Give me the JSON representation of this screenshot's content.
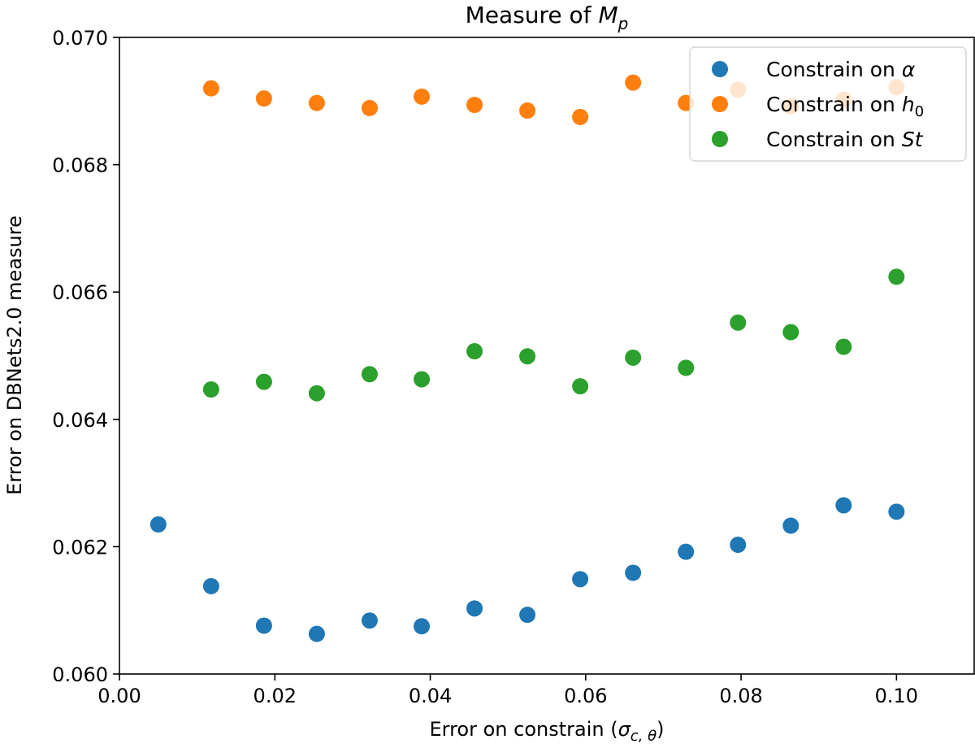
{
  "chart_data": {
    "type": "scatter",
    "title_prefix": "Measure of ",
    "title_var": "M",
    "title_sub": "p",
    "xlabel_prefix": "Error on constrain (",
    "xlabel_var": "σ",
    "xlabel_sub": "c, θ",
    "xlabel_suffix": ")",
    "ylabel": "Error on DBNets2.0 measure",
    "xlim": [
      0.0,
      0.11
    ],
    "ylim": [
      0.06,
      0.07
    ],
    "xticks": [
      0.0,
      0.02,
      0.04,
      0.06,
      0.08,
      0.1
    ],
    "xtick_labels": [
      "0.00",
      "0.02",
      "0.04",
      "0.06",
      "0.08",
      "0.10"
    ],
    "yticks": [
      0.06,
      0.062,
      0.064,
      0.066,
      0.068,
      0.07
    ],
    "ytick_labels": [
      "0.060",
      "0.062",
      "0.064",
      "0.066",
      "0.068",
      "0.070"
    ],
    "legend_position": "top-right",
    "series": [
      {
        "name": "Constrain on α",
        "legend_prefix": "Constrain on ",
        "legend_var": "α",
        "legend_sub": "",
        "color": "#1f77b4",
        "x": [
          0.005,
          0.0118,
          0.0186,
          0.0254,
          0.0322,
          0.0389,
          0.0457,
          0.0525,
          0.0593,
          0.0661,
          0.0729,
          0.0796,
          0.0864,
          0.0932,
          0.1
        ],
        "y": [
          0.06235,
          0.06138,
          0.06076,
          0.06063,
          0.06084,
          0.06075,
          0.06103,
          0.06093,
          0.06149,
          0.06159,
          0.06192,
          0.06203,
          0.06233,
          0.06265,
          0.06255
        ]
      },
      {
        "name": "Constrain on h0",
        "legend_prefix": "Constrain on ",
        "legend_var": "h",
        "legend_sub": "0",
        "color": "#ff7f0e",
        "x": [
          0.0118,
          0.0186,
          0.0254,
          0.0322,
          0.0389,
          0.0457,
          0.0525,
          0.0593,
          0.0661,
          0.0729,
          0.0796,
          0.0864,
          0.0932,
          0.1
        ],
        "y": [
          0.0692,
          0.06904,
          0.06897,
          0.06889,
          0.06907,
          0.06894,
          0.06885,
          0.06875,
          0.06929,
          0.06897,
          0.06918,
          0.06892,
          0.06902,
          0.06922
        ]
      },
      {
        "name": "Constrain on St",
        "legend_prefix": "Constrain on ",
        "legend_var": "St",
        "legend_sub": "",
        "color": "#2ca02c",
        "x": [
          0.0118,
          0.0186,
          0.0254,
          0.0322,
          0.0389,
          0.0457,
          0.0525,
          0.0593,
          0.0661,
          0.0729,
          0.0796,
          0.0864,
          0.0932,
          0.1
        ],
        "y": [
          0.06447,
          0.06459,
          0.06441,
          0.06471,
          0.06463,
          0.06507,
          0.06499,
          0.06452,
          0.06497,
          0.06481,
          0.06552,
          0.06537,
          0.06514,
          0.06624
        ]
      }
    ]
  }
}
